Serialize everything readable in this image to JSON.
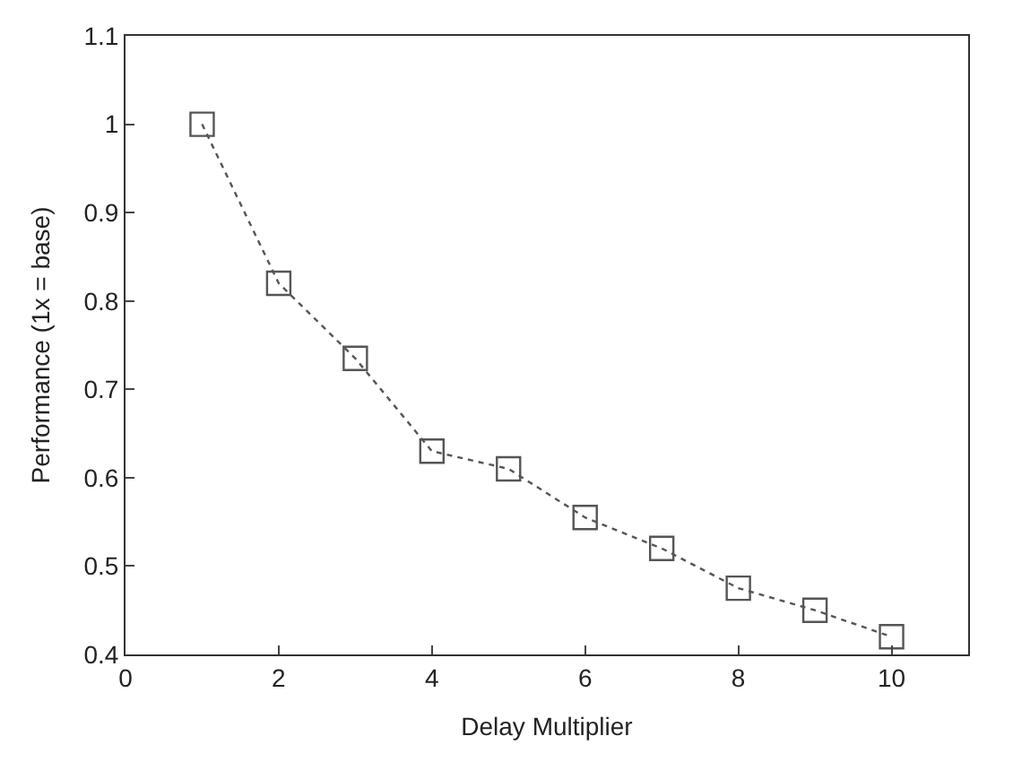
{
  "chart_data": {
    "type": "line",
    "xlabel": "Delay Multiplier",
    "ylabel": "Performance (1x = base)",
    "x": [
      1,
      2,
      3,
      4,
      5,
      6,
      7,
      8,
      9,
      10
    ],
    "series": [
      {
        "color": "#555555",
        "values": [
          1.0,
          0.82,
          0.735,
          0.63,
          0.61,
          0.555,
          0.52,
          0.475,
          0.45,
          0.42
        ]
      }
    ],
    "xlim": [
      0,
      11
    ],
    "xticks": [
      0,
      2,
      4,
      6,
      8,
      10
    ],
    "ylim": [
      0.4,
      1.1
    ],
    "yticks": [
      0.4,
      0.5,
      0.6,
      0.7,
      0.8,
      0.9,
      1,
      1.1
    ],
    "marker": "square",
    "line_style": "dotted"
  }
}
